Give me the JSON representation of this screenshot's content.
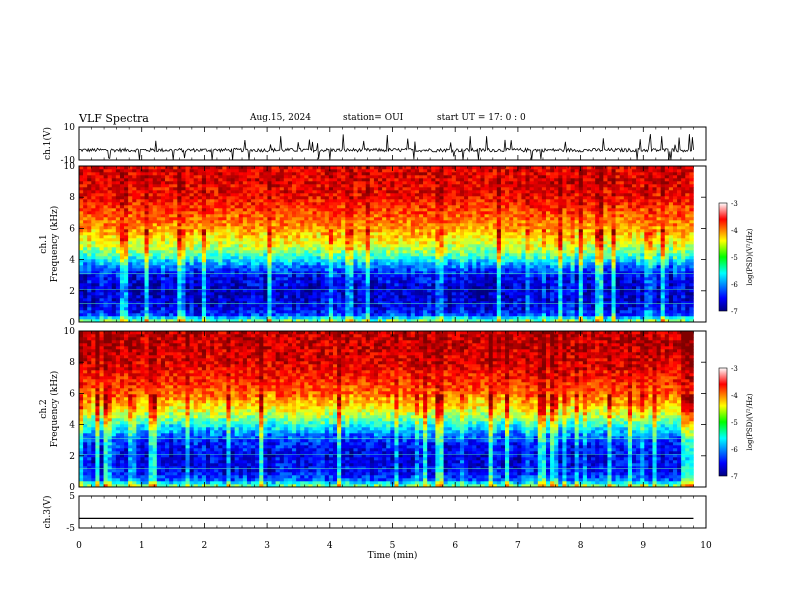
{
  "header": {
    "title": "VLF Spectra",
    "date": "Aug.15, 2024",
    "station": "station= OUI",
    "start": "start  UT =   17: 0  : 0"
  },
  "chart_data": [
    {
      "type": "line",
      "panel": "ch1-waveform",
      "ylabel": "ch.1(V)",
      "ylim": [
        -10,
        10
      ],
      "yticks": [
        "10",
        "-10"
      ],
      "xlim": [
        0,
        10
      ],
      "x": [
        0,
        0.5,
        1,
        1.5,
        2,
        2.5,
        3,
        3.5,
        4,
        4.5,
        5,
        5.5,
        6,
        6.5,
        7,
        7.5,
        8,
        8.5,
        9,
        9.5,
        9.8
      ],
      "y": [
        -4,
        -4,
        -4,
        -4,
        -4,
        -4,
        -4,
        -4,
        -4,
        -4,
        -4,
        -4,
        -4,
        -4,
        -4,
        -4,
        -4,
        -4,
        -4,
        -4,
        -4
      ]
    },
    {
      "type": "heatmap",
      "panel": "ch1-spectrogram",
      "ylabel": "ch.1\nFrequency (kHz)",
      "ylim": [
        0,
        10
      ],
      "yticks": [
        "0",
        "2",
        "4",
        "6",
        "8",
        "10"
      ],
      "xlim": [
        0,
        10
      ],
      "data_xlim": [
        0,
        9.8
      ],
      "colorbar": {
        "label": "log(PSD)(V²/Hz)",
        "range": [
          -7,
          -3
        ],
        "ticks": [
          "-3",
          "-4",
          "-5",
          "-6",
          "-7"
        ]
      },
      "profile": {
        "freq_khz": [
          0,
          0.5,
          1,
          2,
          3,
          3.5,
          4,
          4.5,
          5,
          6,
          7,
          8,
          9,
          10
        ],
        "log_psd": [
          -4.8,
          -6.3,
          -6.6,
          -6.7,
          -6.5,
          -6.1,
          -5.5,
          -5.0,
          -4.6,
          -4.1,
          -3.8,
          -3.5,
          -3.4,
          -3.4
        ]
      }
    },
    {
      "type": "heatmap",
      "panel": "ch2-spectrogram",
      "ylabel": "ch.2\nFrequency (kHz)",
      "ylim": [
        0,
        10
      ],
      "yticks": [
        "0",
        "2",
        "4",
        "6",
        "8",
        "10"
      ],
      "xlim": [
        0,
        10
      ],
      "data_xlim": [
        0,
        9.8
      ],
      "colorbar": {
        "label": "log(PSD)(V²/Hz)",
        "range": [
          -7,
          -3
        ],
        "ticks": [
          "-3",
          "-4",
          "-5",
          "-6",
          "-7"
        ]
      },
      "profile": {
        "freq_khz": [
          0,
          0.5,
          1,
          2,
          3,
          3.5,
          4,
          4.5,
          5,
          6,
          7,
          8,
          9,
          10
        ],
        "log_psd": [
          -4.8,
          -6.2,
          -6.5,
          -6.6,
          -6.3,
          -5.9,
          -5.4,
          -4.9,
          -4.5,
          -3.9,
          -3.6,
          -3.4,
          -3.3,
          -3.3
        ]
      }
    },
    {
      "type": "line",
      "panel": "ch3-waveform",
      "ylabel": "ch.3(V)",
      "ylim": [
        -5,
        5
      ],
      "yticks": [
        "5",
        "-5"
      ],
      "xlim": [
        0,
        10
      ],
      "x": [
        0,
        9.8
      ],
      "y": [
        -2,
        -2
      ]
    }
  ],
  "xaxis": {
    "label": "Time (min)",
    "ticks": [
      "0",
      "1",
      "2",
      "3",
      "4",
      "5",
      "6",
      "7",
      "8",
      "9",
      "10"
    ]
  },
  "colors": {
    "axis": "#000000",
    "line": "#000000"
  },
  "colormap": "jet"
}
